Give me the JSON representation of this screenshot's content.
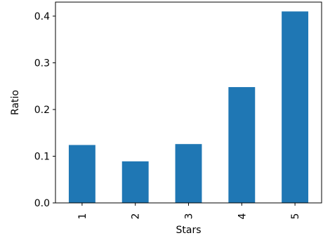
{
  "chart_data": {
    "type": "bar",
    "title": "",
    "xlabel": "Stars",
    "ylabel": "Ratio",
    "categories": [
      "1",
      "2",
      "3",
      "4",
      "5"
    ],
    "values": [
      0.124,
      0.089,
      0.126,
      0.248,
      0.41
    ],
    "ylim": [
      0,
      0.43
    ],
    "yticks": [
      "0.0",
      "0.1",
      "0.2",
      "0.3",
      "0.4"
    ],
    "bar_color": "#1f77b4",
    "grid": false,
    "legend": "none"
  }
}
